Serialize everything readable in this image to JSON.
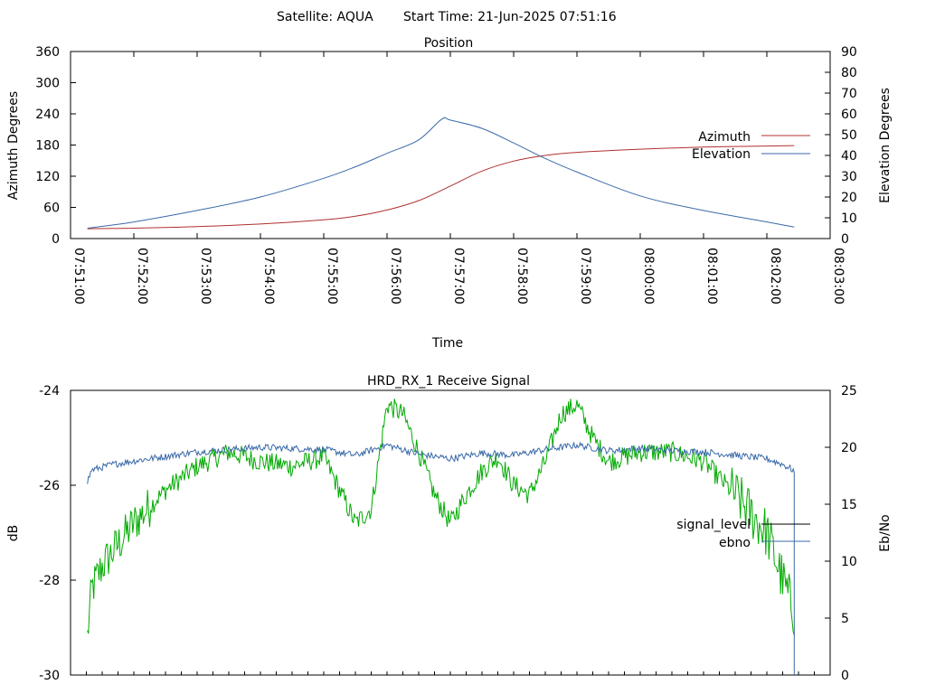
{
  "header": {
    "satellite_text": "Satellite: AQUA",
    "start_time_text": "Start Time: 21-Jun-2025 07:51:16"
  },
  "colors": {
    "azimuth": "#b03030",
    "elevation": "#3a6aa8",
    "signal_level": "#00aa00",
    "ebno": "#3a6aa8",
    "signal_legend": "#000000"
  },
  "chart_data": [
    {
      "type": "line",
      "title": "Position",
      "xlabel": "Time",
      "ylabel": "Azimuth Degrees",
      "y2label": "Elevation Degrees",
      "xlim": [
        "07:51:00",
        "08:03:00"
      ],
      "ylim": [
        0,
        360
      ],
      "y2lim": [
        0,
        90
      ],
      "x_ticks": [
        "07:51:00",
        "07:52:00",
        "07:53:00",
        "07:54:00",
        "07:55:00",
        "07:56:00",
        "07:57:00",
        "07:58:00",
        "07:59:00",
        "08:00:00",
        "08:01:00",
        "08:02:00",
        "08:03:00"
      ],
      "y_ticks": [
        "0",
        "60",
        "120",
        "180",
        "240",
        "300",
        "360"
      ],
      "y2_ticks": [
        "0",
        "10",
        "20",
        "30",
        "40",
        "50",
        "60",
        "70",
        "80",
        "90"
      ],
      "legend_position": "right",
      "series": [
        {
          "name": "Azimuth",
          "axis": "left",
          "x": [
            "07:51:16",
            "07:52:00",
            "07:53:00",
            "07:54:00",
            "07:55:00",
            "07:55:30",
            "07:56:00",
            "07:56:30",
            "07:57:00",
            "07:57:30",
            "07:58:00",
            "07:58:30",
            "07:59:00",
            "08:00:00",
            "08:01:00",
            "08:02:00",
            "08:02:26"
          ],
          "values": [
            19,
            20,
            23,
            28,
            36,
            43,
            55,
            73,
            101,
            130,
            149,
            160,
            166,
            172,
            176,
            178,
            179
          ]
        },
        {
          "name": "Elevation",
          "axis": "right",
          "x": [
            "07:51:16",
            "07:52:00",
            "07:53:00",
            "07:54:00",
            "07:55:00",
            "07:55:30",
            "07:56:00",
            "07:56:30",
            "07:56:52",
            "07:57:00",
            "07:57:30",
            "07:58:00",
            "07:58:30",
            "07:59:00",
            "08:00:00",
            "08:01:00",
            "08:02:00",
            "08:02:26"
          ],
          "values": [
            5,
            8,
            13.5,
            20,
            29,
            34.5,
            41,
            47.5,
            57.5,
            57,
            53,
            46,
            38.5,
            32,
            20.5,
            13.5,
            8,
            5.5
          ]
        }
      ]
    },
    {
      "type": "line",
      "title": "HRD_RX_1 Receive Signal",
      "ylabel": "dB",
      "y2label": "Eb/No",
      "xlim": [
        "07:51:00",
        "08:03:00"
      ],
      "ylim": [
        -30,
        -24
      ],
      "y2lim": [
        0,
        25
      ],
      "y_ticks": [
        "-30",
        "-28",
        "-26",
        "-24"
      ],
      "y2_ticks": [
        "0",
        "5",
        "10",
        "15",
        "20",
        "25"
      ],
      "legend_position": "right",
      "series": [
        {
          "name": "signal_level",
          "axis": "left",
          "x": [
            "07:51:16",
            "07:51:20",
            "07:51:30",
            "07:52:00",
            "07:52:30",
            "07:53:00",
            "07:53:30",
            "07:54:00",
            "07:54:30",
            "07:55:00",
            "07:55:15",
            "07:55:30",
            "07:55:45",
            "07:56:00",
            "07:56:15",
            "07:56:30",
            "07:56:45",
            "07:57:00",
            "07:57:15",
            "07:57:30",
            "07:57:45",
            "07:58:00",
            "07:58:15",
            "07:58:30",
            "07:58:45",
            "07:59:00",
            "07:59:15",
            "07:59:30",
            "08:00:00",
            "08:00:30",
            "08:01:00",
            "08:01:30",
            "08:02:00",
            "08:02:15",
            "08:02:26"
          ],
          "values": [
            -29.2,
            -28.2,
            -27.7,
            -26.8,
            -26.1,
            -25.6,
            -25.3,
            -25.5,
            -25.6,
            -25.4,
            -26.1,
            -26.8,
            -26.5,
            -24.3,
            -24.5,
            -25.3,
            -26.2,
            -26.8,
            -26.2,
            -25.7,
            -25.4,
            -26.0,
            -26.2,
            -25.5,
            -24.5,
            -24.3,
            -25.0,
            -25.5,
            -25.3,
            -25.3,
            -25.5,
            -26.2,
            -27.0,
            -28.0,
            -28.7
          ]
        },
        {
          "name": "ebno",
          "axis": "right",
          "x": [
            "07:51:16",
            "07:51:20",
            "07:51:40",
            "07:52:00",
            "07:53:00",
            "07:54:00",
            "07:55:00",
            "07:55:30",
            "07:56:00",
            "07:56:30",
            "07:57:00",
            "07:57:30",
            "07:58:00",
            "07:58:30",
            "07:59:00",
            "07:59:30",
            "08:00:00",
            "08:00:30",
            "08:01:00",
            "08:01:30",
            "08:02:00",
            "08:02:15",
            "08:02:25",
            "08:02:26",
            "08:02:26"
          ],
          "values": [
            17.0,
            18.0,
            18.5,
            18.8,
            19.6,
            20.0,
            19.8,
            19.3,
            20.2,
            19.4,
            19.0,
            19.5,
            19.3,
            19.8,
            20.2,
            19.7,
            19.9,
            19.7,
            19.6,
            19.3,
            19.0,
            18.5,
            18.0,
            17.8,
            0
          ]
        }
      ]
    }
  ]
}
